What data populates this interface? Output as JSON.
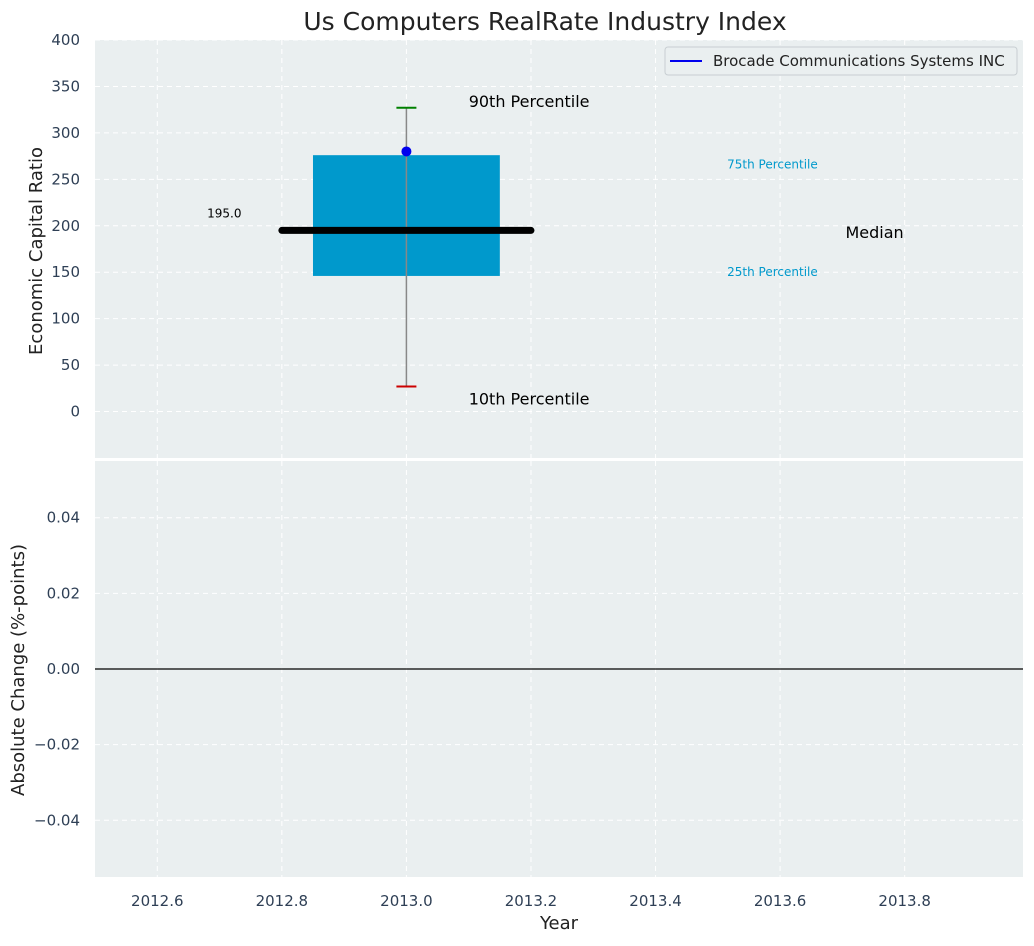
{
  "chart_data": [
    {
      "type": "box",
      "title": "Us Computers RealRate Industry Index",
      "ylabel": "Economic Capital Ratio",
      "xlim": [
        2012.5,
        2013.99
      ],
      "ylim": [
        -50,
        400
      ],
      "yticks": [
        "0",
        "50",
        "100",
        "150",
        "200",
        "250",
        "300",
        "350",
        "400"
      ],
      "grid": true,
      "legend": {
        "position": "top-right",
        "entries": [
          "Brocade Communications Systems INC"
        ]
      },
      "box": {
        "x": 2013.0,
        "p10": 27,
        "p25": 146,
        "median": 195,
        "p75": 276,
        "p90": 327,
        "company_value": 280
      },
      "median_label": "195.0",
      "annotations": {
        "p90": "90th Percentile",
        "p75": "75th Percentile",
        "median": "Median",
        "p25": "25th Percentile",
        "p10": "10th Percentile"
      },
      "colors": {
        "box": "#0099cc",
        "median": "#000000",
        "p90_cap": "#008000",
        "p10_cap": "#cc0000",
        "company": "#0000ee",
        "panel_bg": "#eaeff0"
      }
    },
    {
      "type": "line",
      "xlabel": "Year",
      "ylabel": "Absolute Change (%-points)",
      "xlim": [
        2012.5,
        2013.99
      ],
      "ylim": [
        -0.055,
        0.055
      ],
      "xticks": [
        "2012.6",
        "2012.8",
        "2013.0",
        "2013.2",
        "2013.4",
        "2013.6",
        "2013.8"
      ],
      "yticks": [
        "−0.04",
        "−0.02",
        "0.00",
        "0.02",
        "0.04"
      ],
      "baseline": 0.0,
      "grid": true
    }
  ]
}
